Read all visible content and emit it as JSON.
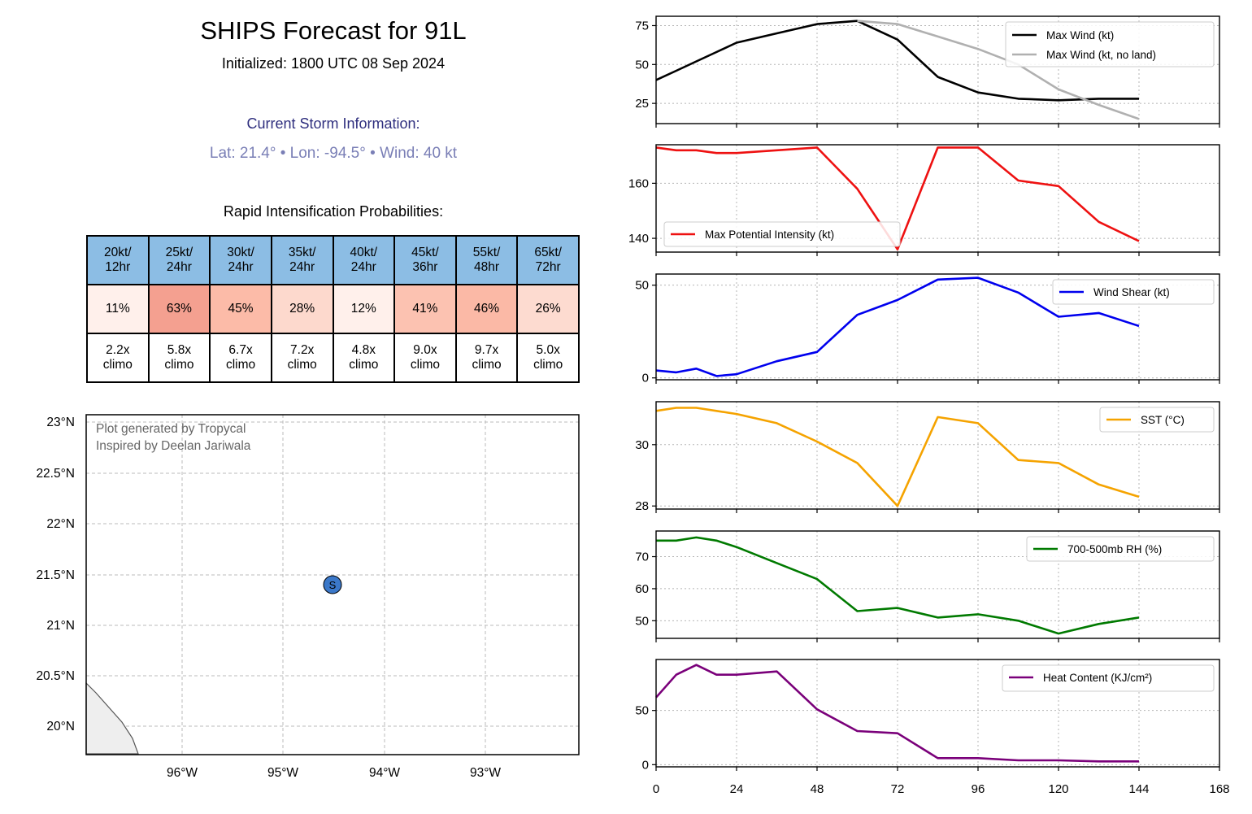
{
  "header": {
    "title": "SHIPS Forecast for 91L",
    "subtitle": "Initialized: 1800 UTC 08 Sep 2024",
    "storm_header": "Current Storm Information:",
    "storm_info": "Lat: 21.4°  • Lon: -94.5°  • Wind: 40 kt",
    "ri_header": "Rapid Intensification Probabilities:"
  },
  "ri_table": {
    "columns": [
      {
        "line1": "20kt/",
        "line2": "12hr",
        "prob": "11%",
        "climo1": "2.2x",
        "climo2": "climo",
        "color": "#fff0eb"
      },
      {
        "line1": "25kt/",
        "line2": "24hr",
        "prob": "63%",
        "climo1": "5.8x",
        "climo2": "climo",
        "color": "#f4a090"
      },
      {
        "line1": "30kt/",
        "line2": "24hr",
        "prob": "45%",
        "climo1": "6.7x",
        "climo2": "climo",
        "color": "#fcbba8"
      },
      {
        "line1": "35kt/",
        "line2": "24hr",
        "prob": "28%",
        "climo1": "7.2x",
        "climo2": "climo",
        "color": "#fdd9cd"
      },
      {
        "line1": "40kt/",
        "line2": "24hr",
        "prob": "12%",
        "climo1": "4.8x",
        "climo2": "climo",
        "color": "#fff0eb"
      },
      {
        "line1": "45kt/",
        "line2": "36hr",
        "prob": "41%",
        "climo1": "9.0x",
        "climo2": "climo",
        "color": "#fcc2b1"
      },
      {
        "line1": "55kt/",
        "line2": "48hr",
        "prob": "46%",
        "climo1": "9.7x",
        "climo2": "climo",
        "color": "#fbb9a6"
      },
      {
        "line1": "65kt/",
        "line2": "72hr",
        "prob": "26%",
        "climo1": "5.0x",
        "climo2": "climo",
        "color": "#fddbd0"
      }
    ]
  },
  "map": {
    "credit_line1": "Plot generated by Tropycal",
    "credit_line2": "Inspired by Deelan Jariwala",
    "lon_ticks": [
      "96°W",
      "95°W",
      "94°W",
      "93°W"
    ],
    "lat_ticks": [
      "23°N",
      "22.5°N",
      "22°N",
      "21.5°N",
      "21°N",
      "20.5°N",
      "20°N"
    ],
    "storm_marker": {
      "label": "S",
      "lat": 21.4,
      "lon": -94.5,
      "color": "#3b78c9"
    }
  },
  "chart_data": [
    {
      "type": "line",
      "x": [
        0,
        6,
        12,
        18,
        24,
        36,
        48,
        60,
        72,
        84,
        96,
        108,
        120,
        132,
        144
      ],
      "series": [
        {
          "name": "Max Wind (kt)",
          "color": "#000000",
          "values": [
            40,
            46,
            52,
            58,
            64,
            70,
            76,
            78,
            66,
            42,
            32,
            28,
            27,
            28,
            28
          ]
        },
        {
          "name": "Max Wind (kt, no land)",
          "color": "#b0b0b0",
          "values": [
            null,
            null,
            null,
            null,
            null,
            null,
            null,
            78,
            76,
            68,
            60,
            50,
            34,
            24,
            15
          ]
        }
      ],
      "yticks": [
        "25",
        "50",
        "75"
      ],
      "ylim": [
        12,
        81
      ],
      "legend": "top-right",
      "grid": true
    },
    {
      "type": "line",
      "x": [
        0,
        6,
        12,
        18,
        24,
        36,
        48,
        60,
        72,
        84,
        96,
        108,
        120,
        132,
        144
      ],
      "series": [
        {
          "name": "Max Potential Intensity (kt)",
          "color": "#ee1111",
          "values": [
            173,
            172,
            172,
            171,
            171,
            172,
            173,
            158,
            136,
            173,
            173,
            161,
            159,
            146,
            139
          ]
        }
      ],
      "yticks": [
        "140",
        "160"
      ],
      "ylim": [
        135,
        174
      ],
      "legend": "bottom-left",
      "grid": true
    },
    {
      "type": "line",
      "x": [
        0,
        6,
        12,
        18,
        24,
        36,
        48,
        60,
        72,
        84,
        96,
        108,
        120,
        132,
        144
      ],
      "series": [
        {
          "name": "Wind Shear (kt)",
          "color": "#0000ee",
          "values": [
            4,
            3,
            5,
            1,
            2,
            9,
            14,
            34,
            42,
            53,
            54,
            46,
            33,
            35,
            28
          ]
        }
      ],
      "yticks": [
        "0",
        "50"
      ],
      "ylim": [
        -1,
        56
      ],
      "legend": "top-right",
      "grid": true
    },
    {
      "type": "line",
      "x": [
        0,
        6,
        12,
        18,
        24,
        36,
        48,
        60,
        72,
        84,
        96,
        108,
        120,
        132,
        144
      ],
      "series": [
        {
          "name": "SST (°C)",
          "color": "#f5a300",
          "values": [
            31.1,
            31.2,
            31.2,
            31.1,
            31.0,
            30.7,
            30.1,
            29.4,
            28.0,
            30.9,
            30.7,
            29.5,
            29.4,
            28.7,
            28.3
          ]
        }
      ],
      "yticks": [
        "28",
        "30"
      ],
      "ylim": [
        27.9,
        31.4
      ],
      "legend": "top-right",
      "grid": true
    },
    {
      "type": "line",
      "x": [
        0,
        6,
        12,
        18,
        24,
        36,
        48,
        60,
        72,
        84,
        96,
        108,
        120,
        132,
        144
      ],
      "series": [
        {
          "name": "700-500mb RH (%)",
          "color": "#007a00",
          "values": [
            75,
            75,
            76,
            75,
            73,
            68,
            63,
            53,
            54,
            51,
            52,
            50,
            46,
            49,
            51
          ]
        }
      ],
      "yticks": [
        "50",
        "60",
        "70"
      ],
      "ylim": [
        44.5,
        78
      ],
      "legend": "top-right",
      "grid": true
    },
    {
      "type": "line",
      "x": [
        0,
        6,
        12,
        18,
        24,
        36,
        48,
        60,
        72,
        84,
        96,
        108,
        120,
        132,
        144
      ],
      "series": [
        {
          "name": "Heat Content (KJ/cm²)",
          "color": "#7a007a",
          "values": [
            62,
            83,
            92,
            83,
            83,
            86,
            51,
            31,
            29,
            6,
            6,
            4,
            4,
            3,
            3
          ]
        }
      ],
      "yticks": [
        "0",
        "50"
      ],
      "ylim": [
        -2,
        97
      ],
      "legend": "top-right",
      "grid": true
    }
  ],
  "xaxis": {
    "ticks": [
      "0",
      "24",
      "48",
      "72",
      "96",
      "120",
      "144",
      "168"
    ],
    "xlim": [
      0,
      168
    ]
  }
}
